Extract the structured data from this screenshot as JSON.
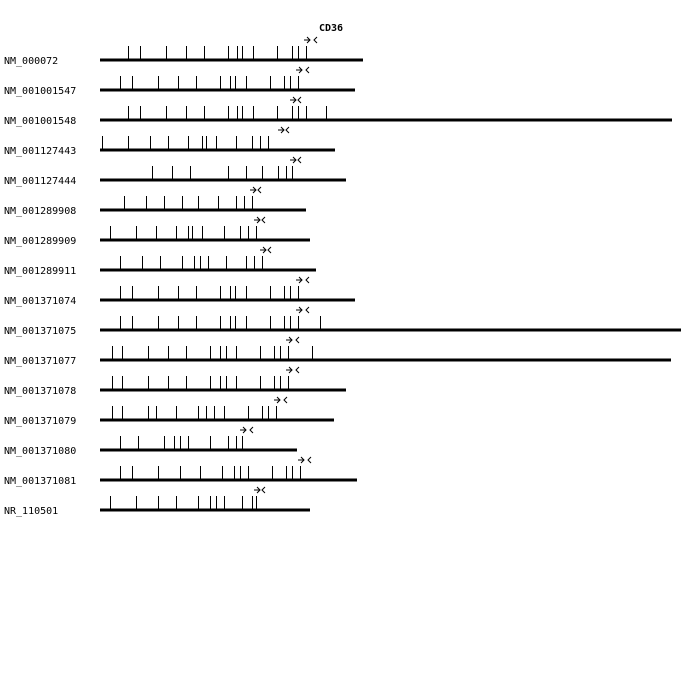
{
  "gene_name": "CD36",
  "colors": {
    "line": "#000000",
    "background": "#ffffff"
  },
  "transcripts": [
    {
      "id": "NM_000072",
      "length": 263,
      "exons": [
        28,
        40,
        66,
        86,
        104,
        128,
        137,
        142,
        153,
        177,
        192,
        198,
        206
      ],
      "primer_forward": 204,
      "primer_reverse": 220
    },
    {
      "id": "NM_001001547",
      "length": 255,
      "exons": [
        20,
        32,
        58,
        78,
        96,
        120,
        130,
        135,
        146,
        170,
        184,
        190,
        198
      ],
      "primer_forward": 196,
      "primer_reverse": 212
    },
    {
      "id": "NM_001001548",
      "length": 572,
      "exons": [
        28,
        40,
        66,
        86,
        104,
        128,
        137,
        142,
        153,
        177,
        192,
        198,
        206,
        226
      ],
      "primer_forward": 190,
      "primer_reverse": 204
    },
    {
      "id": "NM_001127443",
      "length": 235,
      "exons": [
        2,
        28,
        50,
        68,
        88,
        102,
        106,
        116,
        136,
        152,
        160,
        168
      ],
      "primer_forward": 178,
      "primer_reverse": 192
    },
    {
      "id": "NM_001127444",
      "length": 246,
      "exons": [
        52,
        72,
        90,
        128,
        146,
        162,
        178,
        186,
        192
      ],
      "primer_forward": 190,
      "primer_reverse": 204
    },
    {
      "id": "NM_001289908",
      "length": 206,
      "exons": [
        24,
        46,
        64,
        82,
        98,
        118,
        136,
        144,
        152
      ],
      "primer_forward": 150,
      "primer_reverse": 164
    },
    {
      "id": "NM_001289909",
      "length": 210,
      "exons": [
        10,
        36,
        56,
        76,
        88,
        92,
        102,
        124,
        140,
        148,
        156
      ],
      "primer_forward": 154,
      "primer_reverse": 168
    },
    {
      "id": "NM_001289911",
      "length": 216,
      "exons": [
        20,
        42,
        60,
        82,
        94,
        100,
        108,
        126,
        146,
        154,
        162
      ],
      "primer_forward": 160,
      "primer_reverse": 174
    },
    {
      "id": "NM_001371074",
      "length": 255,
      "exons": [
        20,
        32,
        58,
        78,
        96,
        120,
        130,
        135,
        146,
        170,
        184,
        190,
        198
      ],
      "primer_forward": 196,
      "primer_reverse": 212
    },
    {
      "id": "NM_001371075",
      "length": 581,
      "exons": [
        20,
        32,
        58,
        78,
        96,
        120,
        130,
        135,
        146,
        170,
        184,
        190,
        198,
        220
      ],
      "primer_forward": 196,
      "primer_reverse": 212
    },
    {
      "id": "NM_001371077",
      "length": 571,
      "exons": [
        12,
        22,
        48,
        68,
        86,
        110,
        120,
        126,
        136,
        160,
        174,
        180,
        188,
        212
      ],
      "primer_forward": 186,
      "primer_reverse": 202
    },
    {
      "id": "NM_001371078",
      "length": 246,
      "exons": [
        12,
        22,
        48,
        68,
        86,
        110,
        120,
        126,
        136,
        160,
        174,
        180,
        188
      ],
      "primer_forward": 186,
      "primer_reverse": 202
    },
    {
      "id": "NM_001371079",
      "length": 234,
      "exons": [
        12,
        22,
        48,
        56,
        76,
        98,
        106,
        114,
        124,
        148,
        162,
        168,
        176
      ],
      "primer_forward": 174,
      "primer_reverse": 190
    },
    {
      "id": "NM_001371080",
      "length": 197,
      "exons": [
        20,
        38,
        64,
        74,
        80,
        88,
        110,
        128,
        136,
        142
      ],
      "primer_forward": 140,
      "primer_reverse": 156
    },
    {
      "id": "NM_001371081",
      "length": 257,
      "exons": [
        20,
        32,
        58,
        80,
        100,
        122,
        134,
        140,
        148,
        172,
        186,
        192,
        200
      ],
      "primer_forward": 198,
      "primer_reverse": 214
    },
    {
      "id": "NR_110501",
      "length": 210,
      "exons": [
        10,
        36,
        58,
        76,
        98,
        110,
        116,
        124,
        142,
        152,
        156
      ],
      "primer_forward": 154,
      "primer_reverse": 168
    }
  ]
}
